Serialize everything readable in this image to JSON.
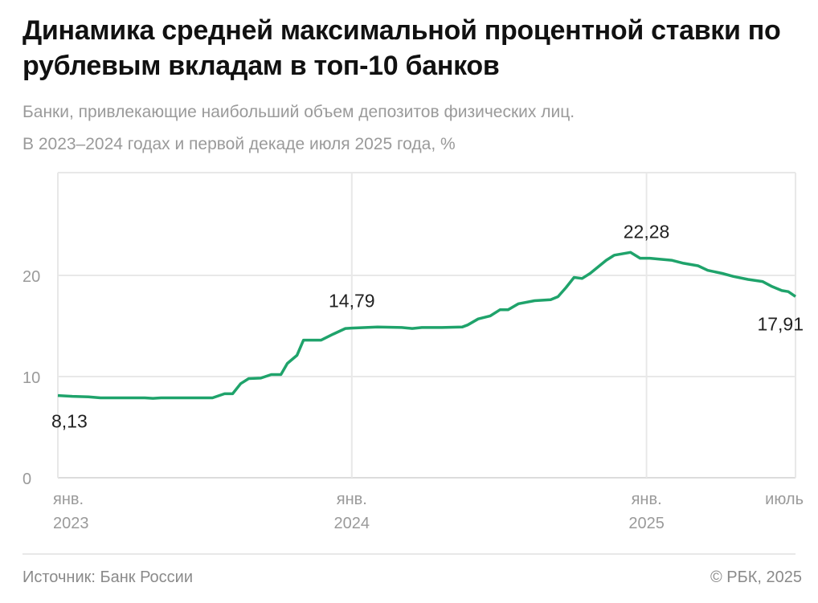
{
  "title": "Динамика средней максимальной процентной ставки по рублевым вкладам в топ-10 банков",
  "subtitle_line1": "Банки, привлекающие наибольший объем депозитов физических лиц.",
  "subtitle_line2": "В 2023–2024 годах и первой декаде июля 2025 года, %",
  "source": "Источник: Банк России",
  "copyright": "© РБК, 2025",
  "chart_data": {
    "type": "line",
    "color": "#1fa36b",
    "ylim": [
      0,
      30
    ],
    "yticks": [
      "0",
      "10",
      "20"
    ],
    "xticks": [
      {
        "date": "2023-01-01",
        "line1": "янв.",
        "line2": "2023"
      },
      {
        "date": "2024-01-01",
        "line1": "янв.",
        "line2": "2024"
      },
      {
        "date": "2025-01-01",
        "line1": "янв.",
        "line2": "2025"
      },
      {
        "date": "2025-07-05",
        "line1": "июль",
        "line2": ""
      }
    ],
    "grid": true,
    "annotations": [
      {
        "date": "2023-01-01",
        "value": 8.13,
        "label": "8,13"
      },
      {
        "date": "2024-01-01",
        "value": 14.79,
        "label": "14,79"
      },
      {
        "date": "2024-12-12",
        "value": 22.28,
        "label": "22,28"
      },
      {
        "date": "2025-07-05",
        "value": 17.91,
        "label": "17,91"
      }
    ],
    "points": [
      [
        "2023-01-01",
        8.13
      ],
      [
        "2023-01-19",
        8.05
      ],
      [
        "2023-02-08",
        8.0
      ],
      [
        "2023-02-23",
        7.9
      ],
      [
        "2023-04-19",
        7.9
      ],
      [
        "2023-04-29",
        7.85
      ],
      [
        "2023-05-09",
        7.9
      ],
      [
        "2023-07-12",
        7.9
      ],
      [
        "2023-07-27",
        8.3
      ],
      [
        "2023-08-06",
        8.3
      ],
      [
        "2023-08-16",
        9.3
      ],
      [
        "2023-08-26",
        9.8
      ],
      [
        "2023-09-10",
        9.85
      ],
      [
        "2023-09-23",
        10.2
      ],
      [
        "2023-10-05",
        10.2
      ],
      [
        "2023-10-13",
        11.3
      ],
      [
        "2023-10-25",
        12.1
      ],
      [
        "2023-11-02",
        13.6
      ],
      [
        "2023-11-24",
        13.6
      ],
      [
        "2023-12-09",
        14.2
      ],
      [
        "2023-12-24",
        14.75
      ],
      [
        "2024-01-01",
        14.79
      ],
      [
        "2024-02-02",
        14.9
      ],
      [
        "2024-03-03",
        14.85
      ],
      [
        "2024-03-16",
        14.75
      ],
      [
        "2024-03-28",
        14.85
      ],
      [
        "2024-04-22",
        14.85
      ],
      [
        "2024-05-17",
        14.9
      ],
      [
        "2024-05-24",
        15.1
      ],
      [
        "2024-06-06",
        15.7
      ],
      [
        "2024-06-21",
        16.0
      ],
      [
        "2024-07-03",
        16.6
      ],
      [
        "2024-07-13",
        16.6
      ],
      [
        "2024-07-26",
        17.2
      ],
      [
        "2024-08-15",
        17.5
      ],
      [
        "2024-09-04",
        17.6
      ],
      [
        "2024-09-13",
        17.9
      ],
      [
        "2024-09-23",
        18.8
      ],
      [
        "2024-10-03",
        19.8
      ],
      [
        "2024-10-13",
        19.7
      ],
      [
        "2024-10-23",
        20.2
      ],
      [
        "2024-11-12",
        21.5
      ],
      [
        "2024-11-22",
        22.0
      ],
      [
        "2024-12-12",
        22.28
      ],
      [
        "2024-12-24",
        21.7
      ],
      [
        "2025-01-05",
        21.7
      ],
      [
        "2025-01-17",
        21.6
      ],
      [
        "2025-02-01",
        21.5
      ],
      [
        "2025-02-16",
        21.2
      ],
      [
        "2025-03-06",
        20.95
      ],
      [
        "2025-03-18",
        20.5
      ],
      [
        "2025-04-05",
        20.2
      ],
      [
        "2025-04-19",
        19.9
      ],
      [
        "2025-05-07",
        19.6
      ],
      [
        "2025-05-25",
        19.4
      ],
      [
        "2025-06-06",
        18.9
      ],
      [
        "2025-06-18",
        18.5
      ],
      [
        "2025-06-26",
        18.4
      ],
      [
        "2025-07-05",
        17.91
      ]
    ]
  }
}
